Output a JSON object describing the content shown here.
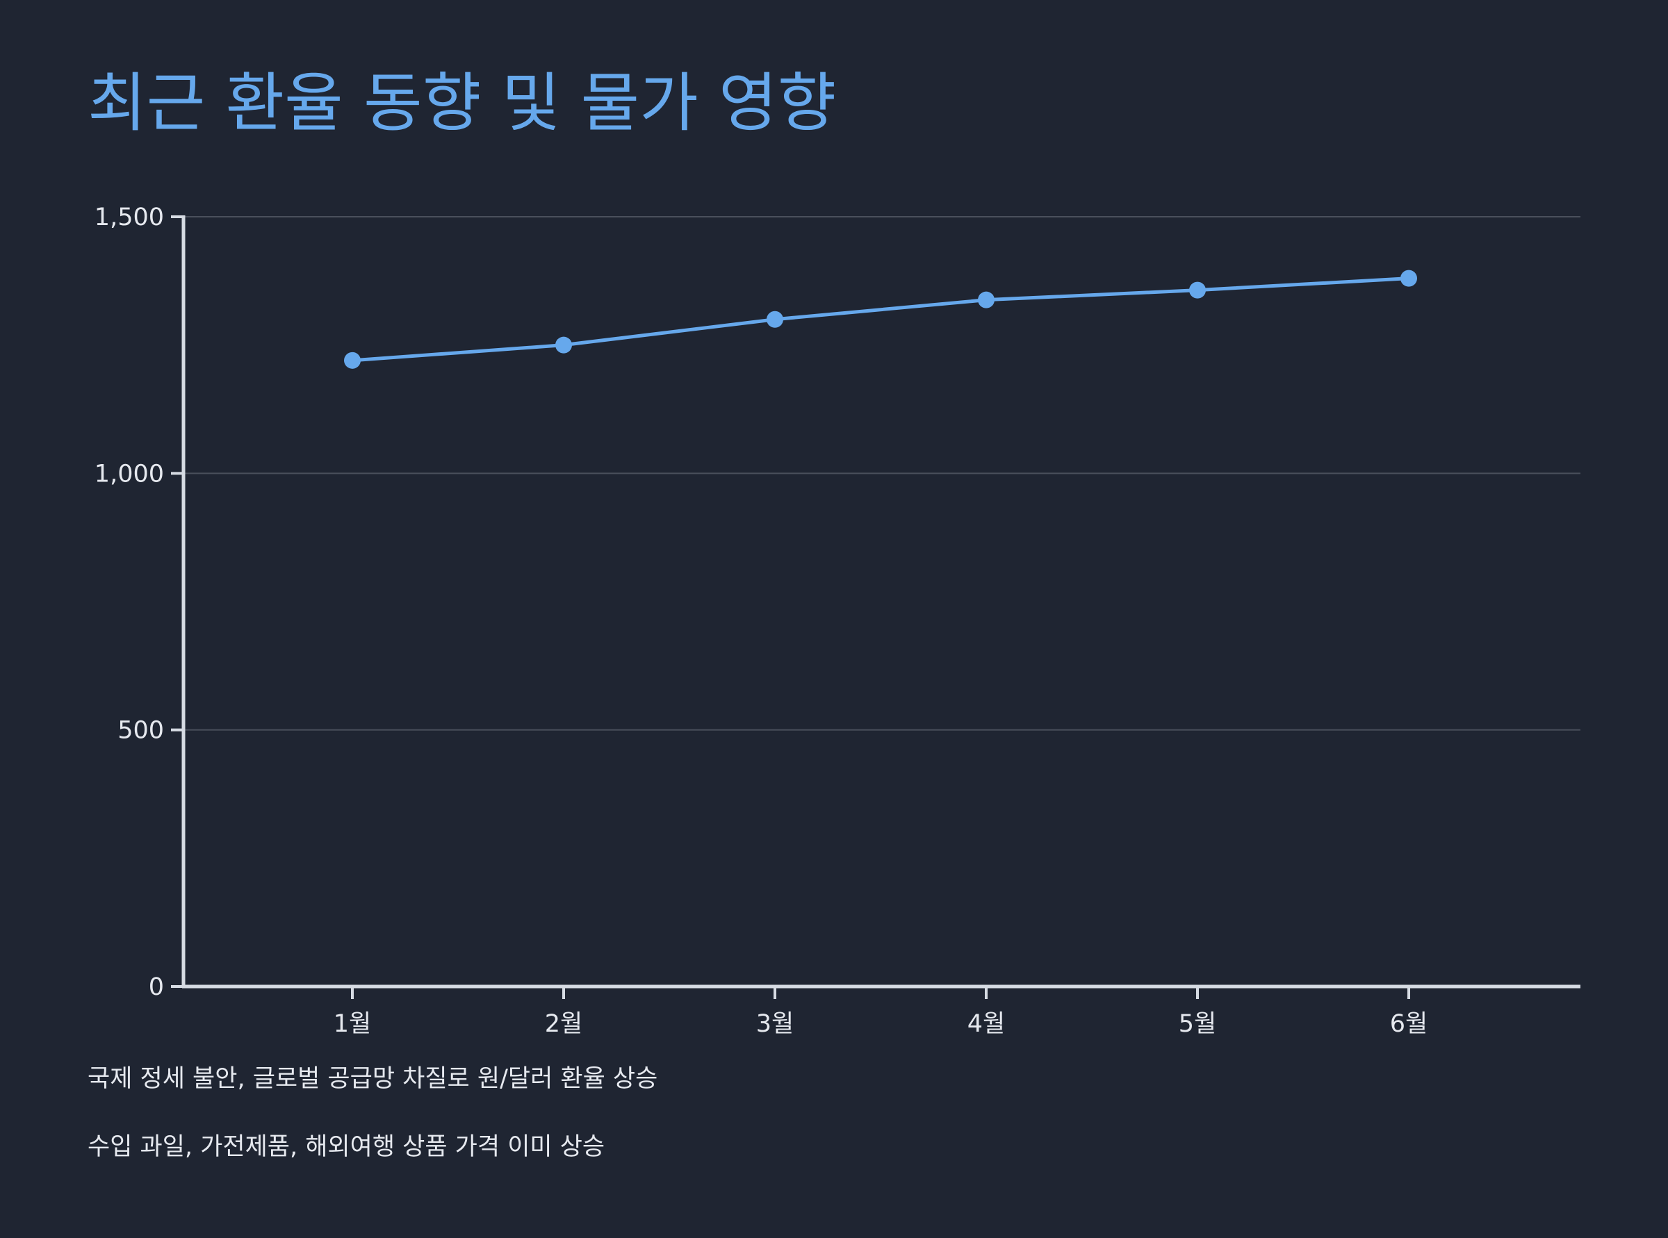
{
  "title": "최근 환율 동향 및 물가 영향",
  "notes": [
    "국제 정세 불안, 글로벌 공급망 차질로 원/달러 환율 상승",
    "수입 과일, 가전제품, 해외여행 상품 가격 이미 상승"
  ],
  "colors": {
    "background": "#1f2532",
    "accent": "#66a8ec",
    "axis": "#d6dbe3",
    "grid": "#4a505c",
    "text": "#e6e9ef"
  },
  "chart_data": {
    "type": "line",
    "categories": [
      "1월",
      "2월",
      "3월",
      "4월",
      "5월",
      "6월"
    ],
    "values": [
      1220,
      1250,
      1300,
      1338,
      1357,
      1380
    ],
    "ylim": [
      0,
      1500
    ],
    "yticks": [
      0,
      500,
      1000,
      1500
    ],
    "ytick_labels": [
      "0",
      "500",
      "1,000",
      "1,500"
    ],
    "grid": true,
    "legend": "none"
  }
}
